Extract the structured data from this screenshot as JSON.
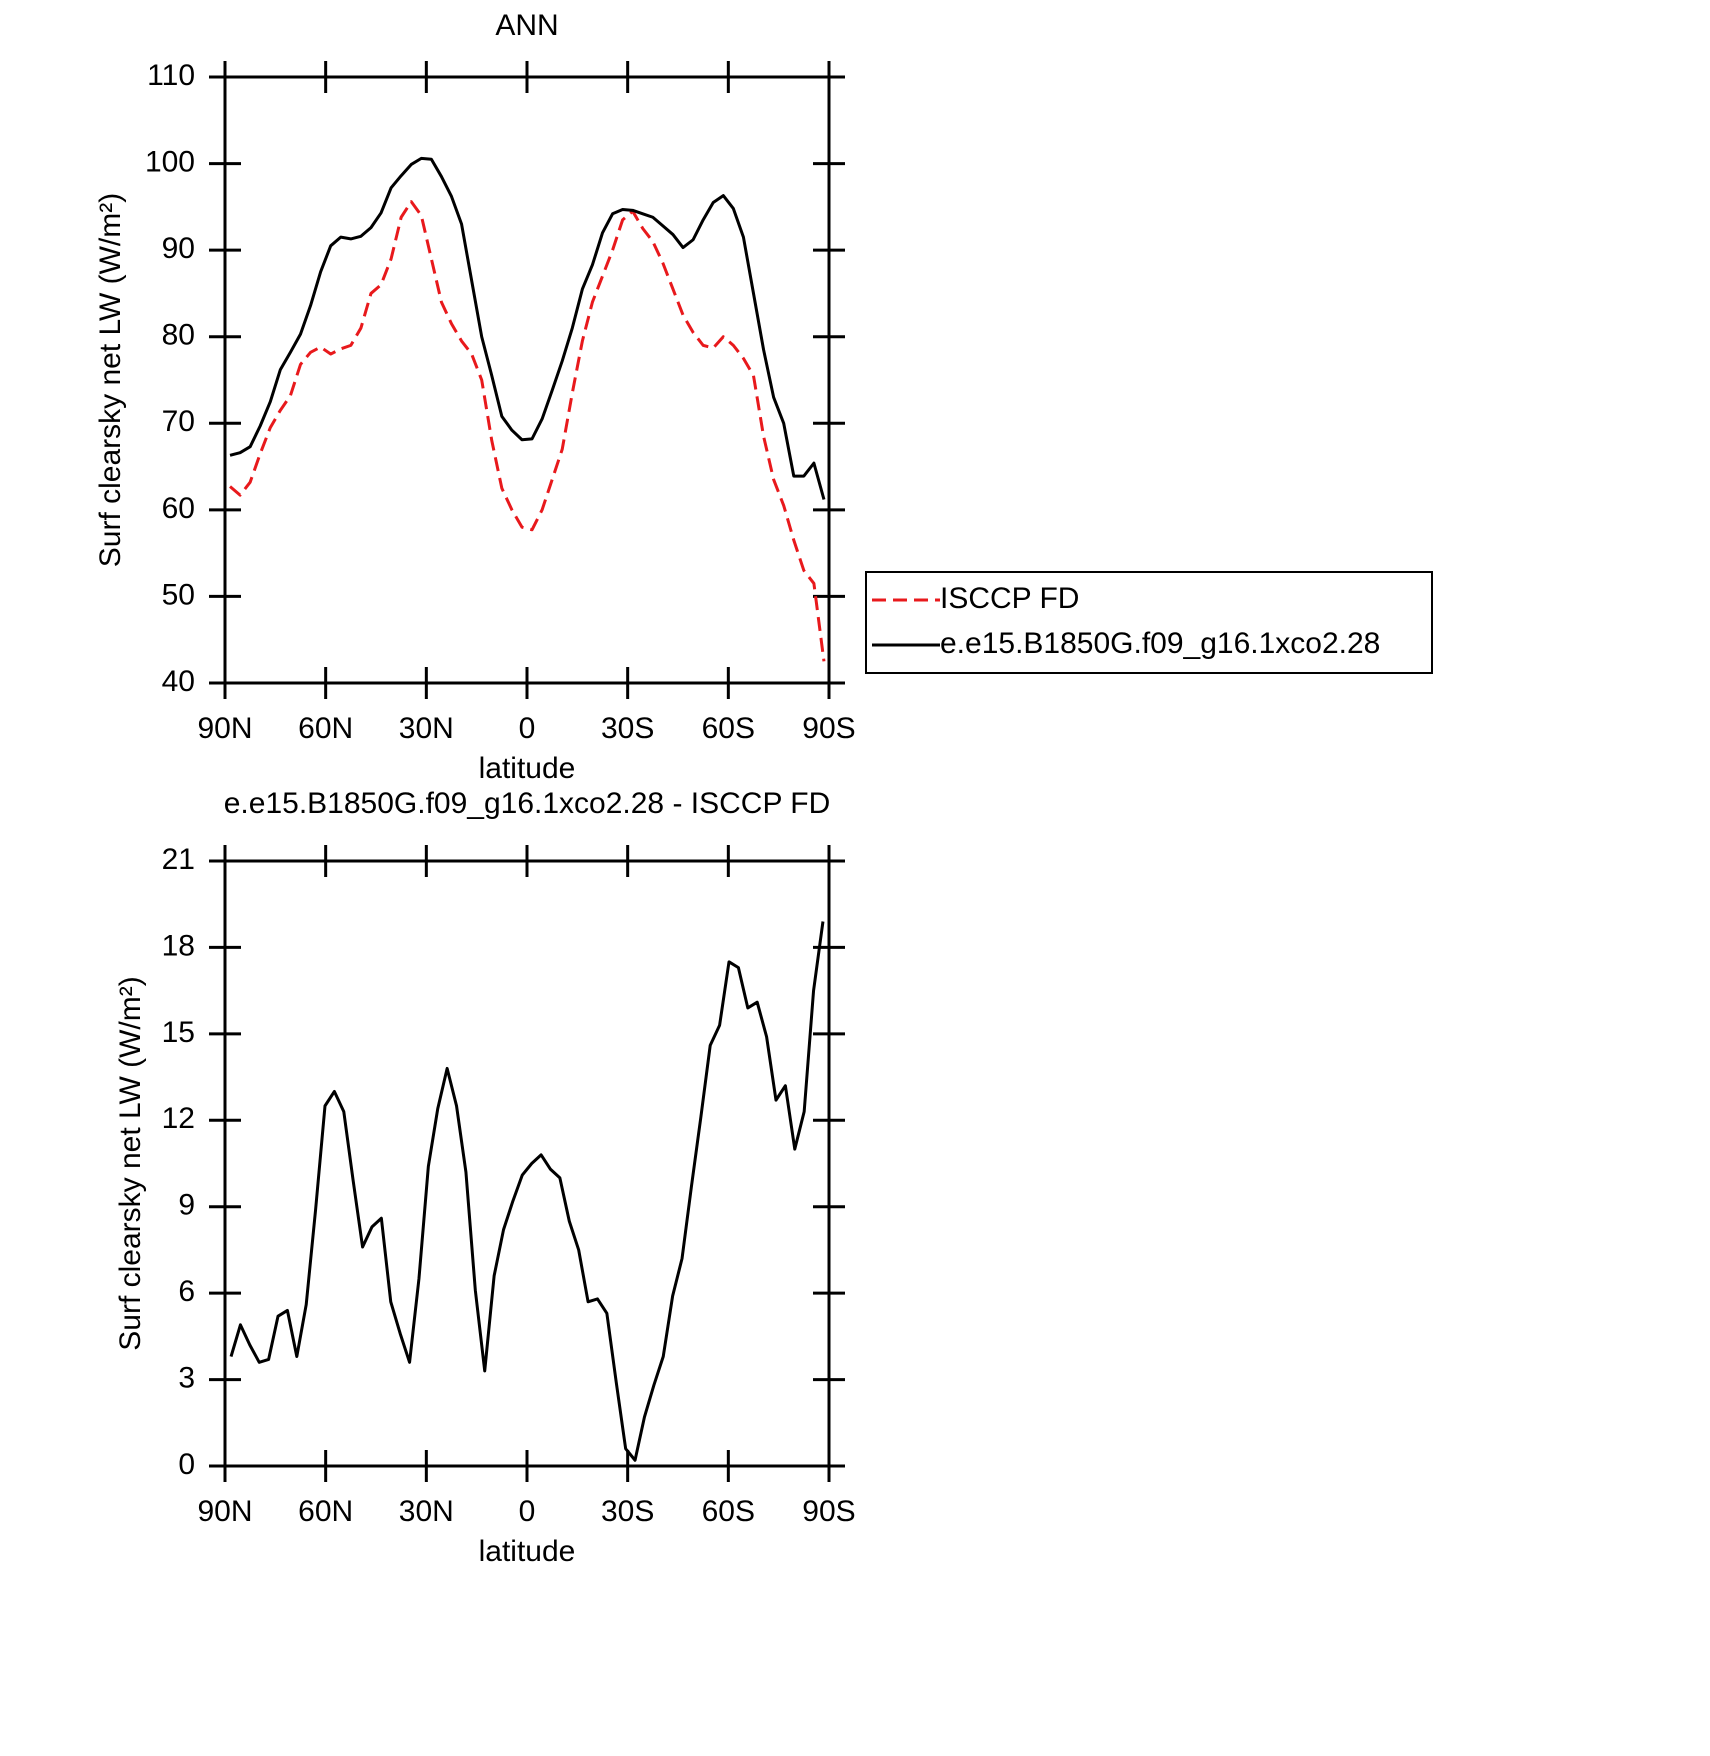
{
  "chart_data": [
    {
      "type": "line",
      "title": "ANN",
      "xlabel": "latitude",
      "ylabel": "Surf clearsky net LW (W/m²)",
      "x": [
        88.5,
        85.5,
        82.5,
        79.5,
        76.5,
        73.5,
        70.5,
        67.5,
        64.5,
        61.5,
        58.5,
        55.5,
        52.5,
        49.5,
        46.5,
        43.5,
        40.5,
        37.5,
        34.5,
        31.5,
        28.5,
        25.5,
        22.5,
        19.5,
        16.5,
        13.5,
        10.5,
        7.5,
        4.5,
        1.5,
        -1.5,
        -4.5,
        -7.5,
        -10.5,
        -13.5,
        -16.5,
        -19.5,
        -22.5,
        -25.5,
        -28.5,
        -31.5,
        -34.5,
        -37.5,
        -40.5,
        -43.5,
        -46.5,
        -49.5,
        -52.5,
        -55.5,
        -58.5,
        -61.5,
        -64.5,
        -67.5,
        -70.5,
        -73.5,
        -76.5,
        -79.5,
        -82.5,
        -85.5,
        -88.5
      ],
      "series": [
        {
          "name": "ISCCP FD",
          "color": "#e8191c",
          "dashed": true,
          "values": [
            62.7,
            61.7,
            63.2,
            66.5,
            69.5,
            71.5,
            73.2,
            76.8,
            78.2,
            78.8,
            78.0,
            78.6,
            79.0,
            81,
            85,
            86,
            89,
            93.8,
            95.6,
            94,
            89,
            84,
            81.5,
            79.5,
            78,
            75,
            68,
            62.5,
            60,
            58,
            57.7,
            60,
            63.5,
            67,
            73.5,
            79.5,
            84,
            87,
            90,
            93.5,
            94.5,
            92.5,
            91,
            88.5,
            85.5,
            82.5,
            80.5,
            79,
            78.7,
            80,
            79,
            77.5,
            75.5,
            68.5,
            63.5,
            60.5,
            56.5,
            53,
            51.5,
            42.5
          ]
        },
        {
          "name": "e.e15.B1850G.f09_g16.1xco2.28",
          "color": "#000000",
          "dashed": false,
          "values": [
            66.3,
            66.6,
            67.3,
            69.7,
            72.5,
            76.2,
            78.2,
            80.3,
            83.6,
            87.5,
            90.5,
            91.5,
            91.3,
            91.6,
            92.6,
            94.3,
            97.2,
            98.6,
            99.9,
            100.6,
            100.5,
            98.5,
            96.2,
            93,
            86.5,
            80,
            75.5,
            70.8,
            69.2,
            68.1,
            68.2,
            70.5,
            73.8,
            77.2,
            81,
            85.5,
            88.3,
            92,
            94.2,
            94.7,
            94.6,
            94.2,
            93.8,
            92.8,
            91.8,
            90.3,
            91.2,
            93.5,
            95.5,
            96.3,
            94.8,
            91.5,
            85,
            78.5,
            73,
            70,
            63.9,
            63.9,
            65.4,
            61.2
          ]
        }
      ],
      "xlim": [
        90,
        -90
      ],
      "xticks": [
        {
          "value": 90,
          "label": "90N"
        },
        {
          "value": 60,
          "label": "60N"
        },
        {
          "value": 30,
          "label": "30N"
        },
        0,
        {
          "value": -30,
          "label": "30S"
        },
        {
          "value": -60,
          "label": "60S"
        },
        {
          "value": -90,
          "label": "90S"
        }
      ],
      "ylim": [
        40,
        110
      ],
      "yticks": [
        40,
        50,
        60,
        70,
        80,
        90,
        100,
        110
      ],
      "legend": "outside-right"
    },
    {
      "type": "line",
      "title": "e.e15.B1850G.f09_g16.1xco2.28 - ISCCP FD",
      "xlabel": "latitude",
      "ylabel": "Surf clearsky net LW (W/m²)",
      "x": [
        88.2,
        85.4,
        82.6,
        79.8,
        77,
        74.2,
        71.4,
        68.6,
        65.8,
        63,
        60.2,
        57.4,
        54.6,
        51.8,
        49,
        46.2,
        43.4,
        40.6,
        37.8,
        35,
        32.2,
        29.4,
        26.6,
        23.8,
        21,
        18.2,
        15.4,
        12.6,
        9.8,
        7,
        4.2,
        1.4,
        -1.4,
        -4.2,
        -7,
        -9.8,
        -12.6,
        -15.4,
        -18.2,
        -21,
        -23.8,
        -26.6,
        -29.4,
        -32.2,
        -35,
        -37.8,
        -40.6,
        -43.4,
        -46.2,
        -49,
        -51.8,
        -54.6,
        -57.4,
        -60.2,
        -63,
        -65.8,
        -68.6,
        -71.4,
        -74.2,
        -77,
        -79.8,
        -82.6,
        -85.4,
        -88.2
      ],
      "series": [
        {
          "color": "#000000",
          "dashed": false,
          "values": [
            3.8,
            4.9,
            4.2,
            3.6,
            3.7,
            5.2,
            5.4,
            3.8,
            5.6,
            8.9,
            12.5,
            13,
            12.3,
            9.9,
            7.6,
            8.3,
            8.6,
            5.7,
            4.6,
            3.6,
            6.5,
            10.4,
            12.4,
            13.8,
            12.5,
            10.2,
            6.1,
            3.3,
            6.6,
            8.2,
            9.2,
            10.1,
            10.5,
            10.8,
            10.3,
            10,
            8.5,
            7.5,
            5.7,
            5.8,
            5.3,
            2.9,
            0.6,
            0.2,
            1.7,
            2.8,
            3.8,
            5.9,
            7.2,
            9.7,
            12.1,
            14.6,
            15.3,
            17.5,
            17.3,
            15.9,
            16.1,
            14.9,
            12.7,
            13.2,
            11,
            12.3,
            16.5,
            18.9
          ]
        }
      ],
      "xlim": [
        90,
        -90
      ],
      "xticks": [
        {
          "value": 90,
          "label": "90N"
        },
        {
          "value": 60,
          "label": "60N"
        },
        {
          "value": 30,
          "label": "30N"
        },
        0,
        {
          "value": -30,
          "label": "30S"
        },
        {
          "value": -60,
          "label": "60S"
        },
        {
          "value": -90,
          "label": "90S"
        }
      ],
      "ylim": [
        0,
        21
      ],
      "yticks": [
        0,
        3,
        6,
        9,
        12,
        15,
        18,
        21
      ]
    }
  ]
}
